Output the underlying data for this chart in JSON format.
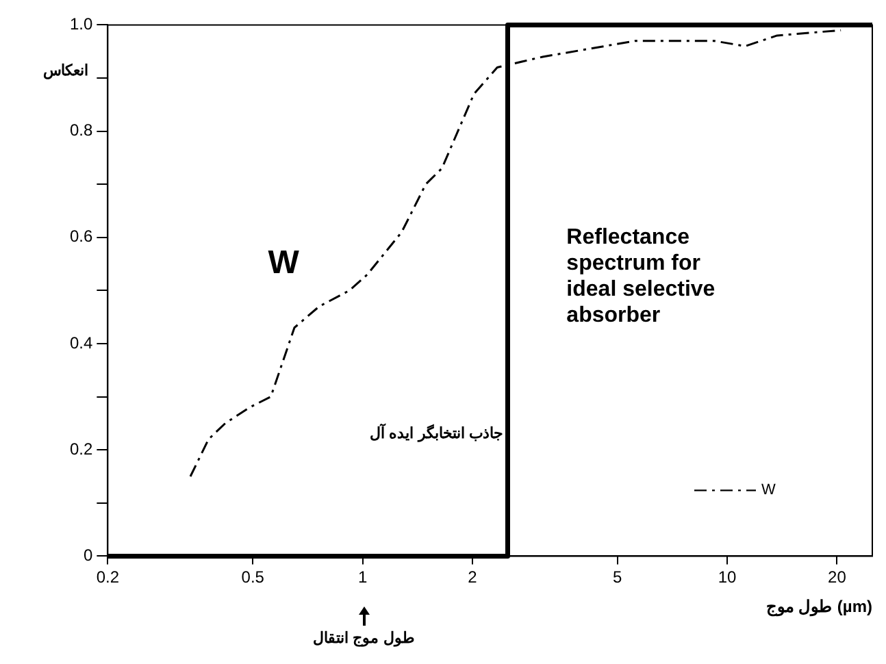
{
  "chart_data": {
    "type": "line",
    "xlabel": "طول موج (µm)",
    "ylabel": "انعکاس",
    "log": "x",
    "xlim": [
      0.2,
      25
    ],
    "xticks": [
      0.2,
      0.5,
      1,
      2,
      5,
      10,
      20
    ],
    "ylim": [
      0,
      1
    ],
    "yticks": [
      {
        "value": 0,
        "label": "0"
      },
      {
        "value": 0.1,
        "label": null
      },
      0.2,
      {
        "value": 0.3,
        "label": null
      },
      0.4,
      {
        "value": 0.5,
        "label": null
      },
      0.6,
      {
        "value": 0.7,
        "label": null
      },
      0.8,
      {
        "value": 0.9,
        "label": null
      },
      {
        "value": 1,
        "label": "1.0"
      }
    ],
    "grid": false,
    "legend": "bottom right",
    "marker": "none",
    "series": [
      {
        "name": "W",
        "color": "#000000",
        "line_style": "dashed",
        "x": [
          0.337,
          0.378,
          0.42,
          0.49,
          0.56,
          0.6,
          0.65,
          0.76,
          0.92,
          1.03,
          1.28,
          1.49,
          1.65,
          2.02,
          2.34,
          3.12,
          5.6,
          9.2,
          11.2,
          13.7,
          20.5
        ],
        "values": [
          0.15,
          0.22,
          0.25,
          0.28,
          0.3,
          0.36,
          0.43,
          0.47,
          0.5,
          0.53,
          0.61,
          0.7,
          0.73,
          0.87,
          0.92,
          0.94,
          0.97,
          0.97,
          0.96,
          0.98,
          0.99
        ]
      },
      {
        "color": "#000000",
        "line_style": "solid",
        "x": [
          0.2,
          2.5,
          2.5,
          25
        ],
        "values": [
          0,
          0,
          1,
          1
        ]
      }
    ],
    "annotations": [
      "W",
      "جاذب انتخابگر ایده آل",
      "طول موج انتقال",
      "Reflectance spectrum for ideal selective absorber"
    ]
  }
}
